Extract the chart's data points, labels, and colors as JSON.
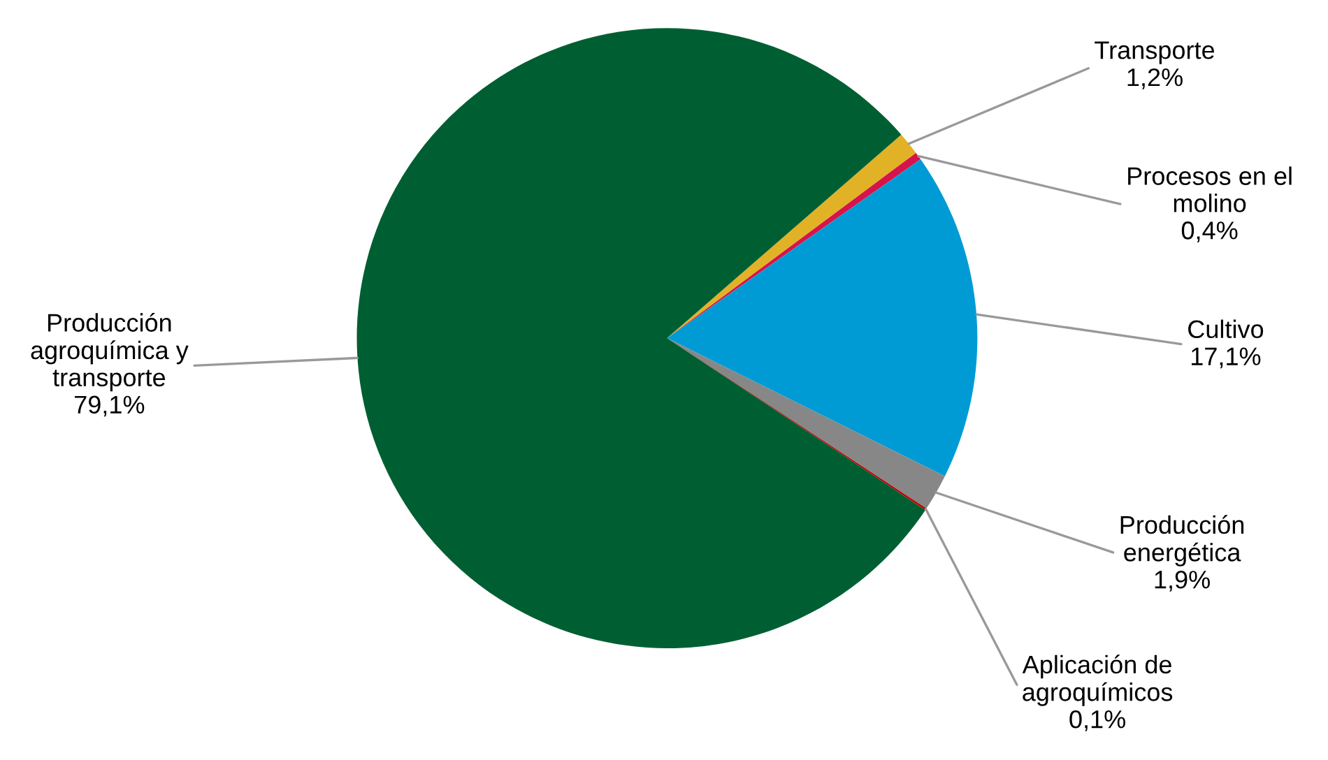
{
  "chart_data": {
    "type": "pie",
    "categories": [
      "Transporte",
      "Procesos en el molino",
      "Cultivo",
      "Producción energética",
      "Aplicación de agroquímicos",
      "Producción agroquímica y transporte"
    ],
    "values": [
      1.2,
      0.4,
      17.1,
      1.9,
      0.1,
      79.1
    ],
    "value_labels": [
      "1,2%",
      "0,4%",
      "17,1%",
      "1,9%",
      "0,1%",
      "79,1%"
    ],
    "colors": [
      "#e2b226",
      "#d7134b",
      "#009bd5",
      "#878787",
      "#c00000",
      "#005f32"
    ],
    "legend": false
  }
}
